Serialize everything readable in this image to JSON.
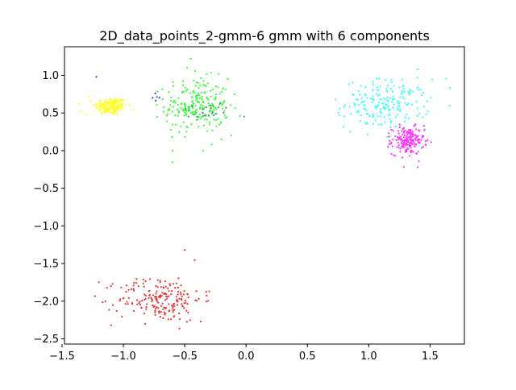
{
  "chart_data": {
    "type": "scatter",
    "title": "2D_data_points_2-gmm-6 gmm with 6 components",
    "xlabel": "",
    "ylabel": "",
    "xlim": [
      -1.48,
      1.78
    ],
    "ylim": [
      -2.57,
      1.38
    ],
    "xticks": [
      -1.5,
      -1.0,
      -0.5,
      0.0,
      0.5,
      1.0,
      1.5
    ],
    "xtick_labels": [
      "−1.5",
      "−1.0",
      "−0.5",
      "0.0",
      "0.5",
      "1.0",
      "1.5"
    ],
    "yticks": [
      -2.5,
      -2.0,
      -1.5,
      -1.0,
      -0.5,
      0.0,
      0.5,
      1.0
    ],
    "ytick_labels": [
      "−2.5",
      "−2.0",
      "−1.5",
      "−1.0",
      "−0.5",
      "0.0",
      "0.5",
      "1.0"
    ],
    "grid": false,
    "legend": "none",
    "clusters": [
      {
        "color": "#ffff22",
        "n": 170,
        "mean": [
          -1.1,
          0.59
        ],
        "std": [
          0.065,
          0.06
        ],
        "extra_points": [
          [
            -1.35,
            0.52
          ],
          [
            -1.28,
            0.72
          ],
          [
            -0.95,
            0.6
          ],
          [
            -1.3,
            0.48
          ]
        ]
      },
      {
        "color": "#33ff33",
        "n": 220,
        "mean": [
          -0.4,
          0.6
        ],
        "std": [
          0.13,
          0.18
        ],
        "extra_points": [
          [
            -0.45,
            1.22
          ],
          [
            -0.48,
            1.1
          ],
          [
            -0.6,
            0.0
          ],
          [
            -0.35,
            0.0
          ],
          [
            -0.12,
            0.2
          ],
          [
            -0.05,
            0.46
          ],
          [
            -0.2,
            0.15
          ]
        ]
      },
      {
        "color": "#4a9a72",
        "n": 28,
        "mean": [
          -0.35,
          0.52
        ],
        "std": [
          0.12,
          0.06
        ],
        "extra_points": []
      },
      {
        "color": "#3344cc",
        "n": 4,
        "mean": [
          -0.72,
          0.71
        ],
        "std": [
          0.02,
          0.02
        ],
        "extra_points": [
          [
            -1.22,
            0.98
          ],
          [
            -0.74,
            0.76
          ]
        ]
      },
      {
        "color": "#33ffff",
        "n": 200,
        "mean": [
          1.15,
          0.62
        ],
        "std": [
          0.17,
          0.16
        ],
        "extra_points": [
          [
            0.73,
            0.68
          ],
          [
            1.63,
            0.96
          ],
          [
            0.85,
            0.25
          ],
          [
            1.4,
            1.08
          ]
        ]
      },
      {
        "color": "#ff33ff",
        "n": 190,
        "mean": [
          1.32,
          0.13
        ],
        "std": [
          0.065,
          0.09
        ],
        "extra_points": [
          [
            1.4,
            -0.22
          ],
          [
            1.45,
            0.33
          ],
          [
            1.17,
            0.13
          ]
        ]
      },
      {
        "color": "#ee3333",
        "n": 200,
        "mean": [
          -0.7,
          -1.97
        ],
        "std": [
          0.17,
          0.15
        ],
        "extra_points": [
          [
            -0.5,
            -1.32
          ],
          [
            -1.2,
            -1.75
          ],
          [
            -1.1,
            -2.32
          ],
          [
            -0.37,
            -2.27
          ],
          [
            -0.3,
            -1.87
          ]
        ]
      }
    ]
  }
}
